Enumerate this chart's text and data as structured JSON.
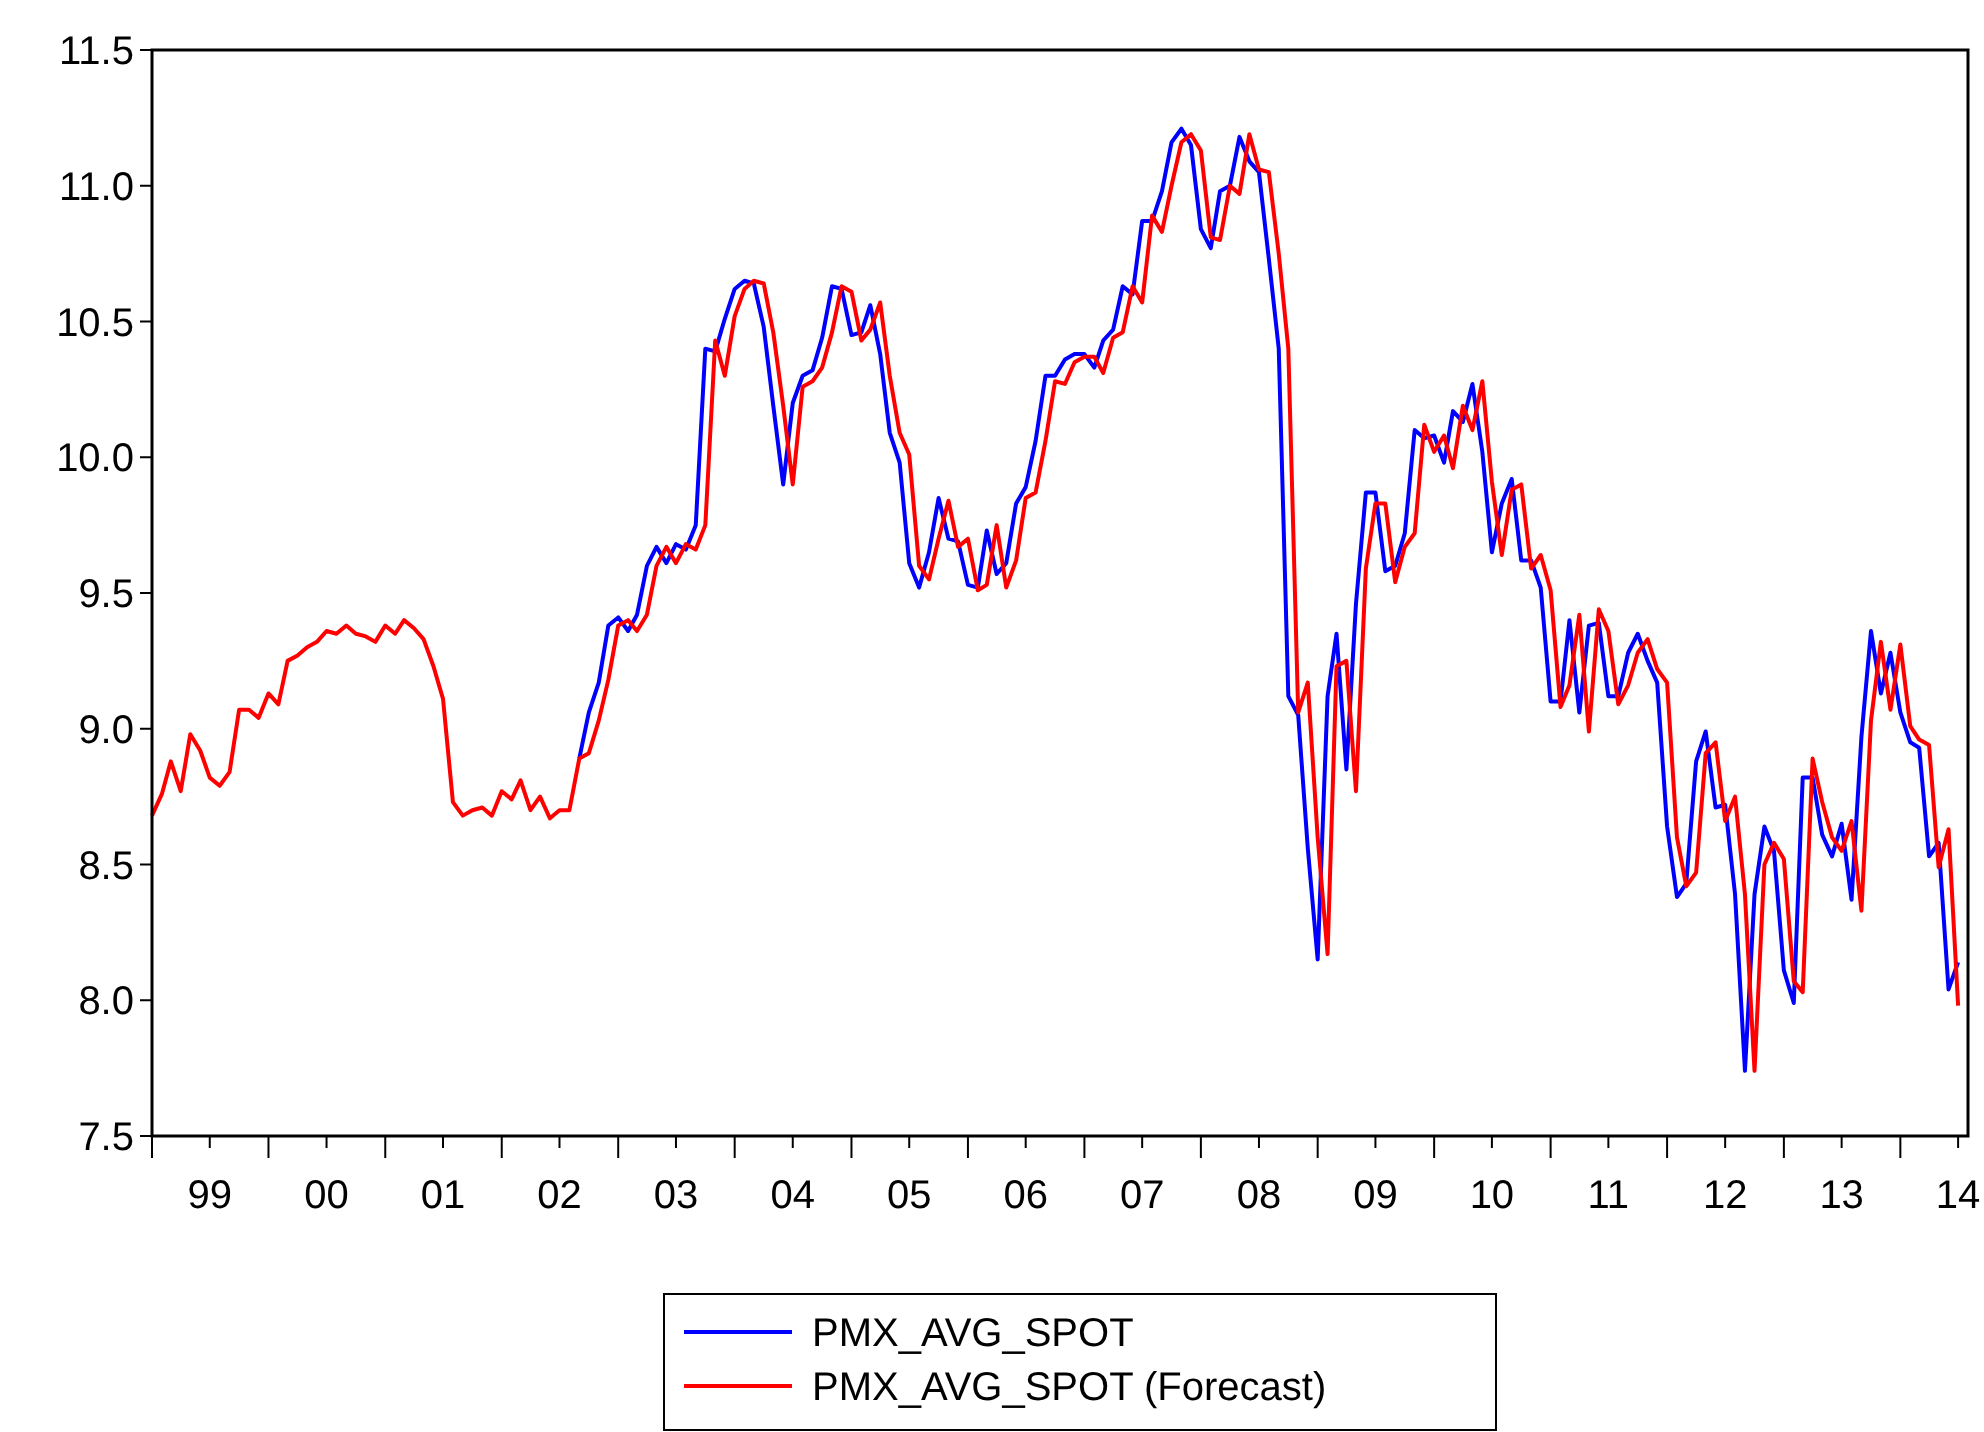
{
  "chart_data": {
    "type": "line",
    "x": [
      "1999-01",
      "1999-02",
      "1999-03",
      "1999-04",
      "1999-05",
      "1999-06",
      "1999-07",
      "1999-08",
      "1999-09",
      "1999-10",
      "1999-11",
      "1999-12",
      "2000-01",
      "2000-02",
      "2000-03",
      "2000-04",
      "2000-05",
      "2000-06",
      "2000-07",
      "2000-08",
      "2000-09",
      "2000-10",
      "2000-11",
      "2000-12",
      "2001-01",
      "2001-02",
      "2001-03",
      "2001-04",
      "2001-05",
      "2001-06",
      "2001-07",
      "2001-08",
      "2001-09",
      "2001-10",
      "2001-11",
      "2001-12",
      "2002-01",
      "2002-02",
      "2002-03",
      "2002-04",
      "2002-05",
      "2002-06",
      "2002-07",
      "2002-08",
      "2002-09",
      "2002-10",
      "2002-11",
      "2002-12",
      "2003-01",
      "2003-02",
      "2003-03",
      "2003-04",
      "2003-05",
      "2003-06",
      "2003-07",
      "2003-08",
      "2003-09",
      "2003-10",
      "2003-11",
      "2003-12",
      "2004-01",
      "2004-02",
      "2004-03",
      "2004-04",
      "2004-05",
      "2004-06",
      "2004-07",
      "2004-08",
      "2004-09",
      "2004-10",
      "2004-11",
      "2004-12",
      "2005-01",
      "2005-02",
      "2005-03",
      "2005-04",
      "2005-05",
      "2005-06",
      "2005-07",
      "2005-08",
      "2005-09",
      "2005-10",
      "2005-11",
      "2005-12",
      "2006-01",
      "2006-02",
      "2006-03",
      "2006-04",
      "2006-05",
      "2006-06",
      "2006-07",
      "2006-08",
      "2006-09",
      "2006-10",
      "2006-11",
      "2006-12",
      "2007-01",
      "2007-02",
      "2007-03",
      "2007-04",
      "2007-05",
      "2007-06",
      "2007-07",
      "2007-08",
      "2007-09",
      "2007-10",
      "2007-11",
      "2007-12",
      "2008-01",
      "2008-02",
      "2008-03",
      "2008-04",
      "2008-05",
      "2008-06",
      "2008-07",
      "2008-08",
      "2008-09",
      "2008-10",
      "2008-11",
      "2008-12",
      "2009-01",
      "2009-02",
      "2009-03",
      "2009-04",
      "2009-05",
      "2009-06",
      "2009-07",
      "2009-08",
      "2009-09",
      "2009-10",
      "2009-11",
      "2009-12",
      "2010-01",
      "2010-02",
      "2010-03",
      "2010-04",
      "2010-05",
      "2010-06",
      "2010-07",
      "2010-08",
      "2010-09",
      "2010-10",
      "2010-11",
      "2010-12",
      "2011-01",
      "2011-02",
      "2011-03",
      "2011-04",
      "2011-05",
      "2011-06",
      "2011-07",
      "2011-08",
      "2011-09",
      "2011-10",
      "2011-11",
      "2011-12",
      "2012-01",
      "2012-02",
      "2012-03",
      "2012-04",
      "2012-05",
      "2012-06",
      "2012-07",
      "2012-08",
      "2012-09",
      "2012-10",
      "2012-11",
      "2012-12",
      "2013-01",
      "2013-02",
      "2013-03",
      "2013-04",
      "2013-05",
      "2013-06",
      "2013-07",
      "2013-08",
      "2013-09",
      "2013-10",
      "2013-11",
      "2013-12",
      "2014-01",
      "2014-02",
      "2014-03",
      "2014-04",
      "2014-05",
      "2014-06",
      "2014-07"
    ],
    "series": [
      {
        "name": "PMX_AVG_SPOT",
        "color": "#0000ff",
        "values": [
          null,
          null,
          null,
          null,
          null,
          null,
          null,
          null,
          null,
          null,
          null,
          null,
          null,
          null,
          null,
          null,
          null,
          null,
          null,
          null,
          null,
          null,
          null,
          null,
          null,
          null,
          null,
          null,
          null,
          null,
          null,
          null,
          null,
          null,
          null,
          null,
          null,
          null,
          null,
          null,
          null,
          null,
          null,
          null,
          8.89,
          9.06,
          9.17,
          9.38,
          9.41,
          9.36,
          9.42,
          9.6,
          9.67,
          9.61,
          9.68,
          9.66,
          9.75,
          10.4,
          10.39,
          10.51,
          10.62,
          10.65,
          10.64,
          10.48,
          10.19,
          9.9,
          10.2,
          10.3,
          10.32,
          10.44,
          10.63,
          10.62,
          10.45,
          10.46,
          10.56,
          10.38,
          10.09,
          9.98,
          9.61,
          9.52,
          9.65,
          9.85,
          9.7,
          9.69,
          9.53,
          9.52,
          9.73,
          9.57,
          9.61,
          9.83,
          9.89,
          10.06,
          10.3,
          10.3,
          10.36,
          10.38,
          10.38,
          10.33,
          10.43,
          10.47,
          10.63,
          10.6,
          10.87,
          10.87,
          10.98,
          11.16,
          11.21,
          11.15,
          10.84,
          10.77,
          10.98,
          11.0,
          11.18,
          11.09,
          11.05,
          10.73,
          10.4,
          9.12,
          9.05,
          8.56,
          8.15,
          9.12,
          9.35,
          8.85,
          9.46,
          9.87,
          9.87,
          9.58,
          9.6,
          9.72,
          10.1,
          10.07,
          10.08,
          9.98,
          10.17,
          10.13,
          10.27,
          10.02,
          9.65,
          9.83,
          9.92,
          9.62,
          9.62,
          9.52,
          9.1,
          9.1,
          9.4,
          9.06,
          9.38,
          9.39,
          9.12,
          9.12,
          9.28,
          9.35,
          9.25,
          9.17,
          8.64,
          8.38,
          8.43,
          8.88,
          8.99,
          8.71,
          8.72,
          8.39,
          7.74,
          8.39,
          8.64,
          8.55,
          8.11,
          7.99,
          8.82,
          8.82,
          8.61,
          8.53,
          8.65,
          8.37,
          8.97,
          9.36,
          9.13,
          9.28,
          9.06,
          8.95,
          8.93,
          8.53,
          8.58,
          8.04,
          8.14
        ]
      },
      {
        "name": "PMX_AVG_SPOT (Forecast)",
        "color": "#ff0000",
        "values": [
          8.68,
          8.76,
          8.88,
          8.77,
          8.98,
          8.92,
          8.82,
          8.79,
          8.84,
          9.07,
          9.07,
          9.04,
          9.13,
          9.09,
          9.25,
          9.27,
          9.3,
          9.32,
          9.36,
          9.35,
          9.38,
          9.35,
          9.34,
          9.32,
          9.38,
          9.35,
          9.4,
          9.37,
          9.33,
          9.23,
          9.11,
          8.73,
          8.68,
          8.7,
          8.71,
          8.68,
          8.77,
          8.74,
          8.81,
          8.7,
          8.75,
          8.67,
          8.7,
          8.7,
          8.89,
          8.91,
          9.03,
          9.18,
          9.38,
          9.4,
          9.36,
          9.42,
          9.6,
          9.67,
          9.61,
          9.68,
          9.66,
          9.75,
          10.43,
          10.3,
          10.52,
          10.62,
          10.65,
          10.64,
          10.46,
          10.19,
          9.9,
          10.26,
          10.28,
          10.33,
          10.46,
          10.63,
          10.61,
          10.43,
          10.47,
          10.57,
          10.3,
          10.09,
          10.01,
          9.6,
          9.55,
          9.7,
          9.84,
          9.67,
          9.7,
          9.51,
          9.53,
          9.75,
          9.52,
          9.62,
          9.85,
          9.87,
          10.06,
          10.28,
          10.27,
          10.35,
          10.37,
          10.37,
          10.31,
          10.44,
          10.46,
          10.63,
          10.57,
          10.89,
          10.83,
          11.0,
          11.16,
          11.19,
          11.13,
          10.81,
          10.8,
          11.0,
          10.97,
          11.19,
          11.06,
          11.05,
          10.75,
          10.4,
          9.06,
          9.17,
          8.6,
          8.17,
          9.23,
          9.25,
          8.77,
          9.59,
          9.83,
          9.83,
          9.54,
          9.67,
          9.72,
          10.12,
          10.02,
          10.08,
          9.96,
          10.19,
          10.1,
          10.28,
          9.91,
          9.64,
          9.88,
          9.9,
          9.59,
          9.64,
          9.51,
          9.08,
          9.16,
          9.42,
          8.99,
          9.44,
          9.36,
          9.09,
          9.16,
          9.28,
          9.33,
          9.22,
          9.17,
          8.6,
          8.42,
          8.47,
          8.91,
          8.95,
          8.66,
          8.75,
          8.39,
          7.74,
          8.5,
          8.58,
          8.52,
          8.07,
          8.03,
          8.89,
          8.73,
          8.6,
          8.55,
          8.66,
          8.33,
          9.03,
          9.32,
          9.07,
          9.31,
          9.01,
          8.96,
          8.94,
          8.49,
          8.63,
          7.98
        ]
      }
    ],
    "xlim": [
      "1999-01",
      "2014-08"
    ],
    "xticks": [
      {
        "value": "1999-01",
        "label": null
      },
      {
        "value": "1999-07",
        "label": "99"
      },
      {
        "value": "2000-01",
        "label": null
      },
      {
        "value": "2000-07",
        "label": "00"
      },
      {
        "value": "2001-01",
        "label": null
      },
      {
        "value": "2001-07",
        "label": "01"
      },
      {
        "value": "2002-01",
        "label": null
      },
      {
        "value": "2002-07",
        "label": "02"
      },
      {
        "value": "2003-01",
        "label": null
      },
      {
        "value": "2003-07",
        "label": "03"
      },
      {
        "value": "2004-01",
        "label": null
      },
      {
        "value": "2004-07",
        "label": "04"
      },
      {
        "value": "2005-01",
        "label": null
      },
      {
        "value": "2005-07",
        "label": "05"
      },
      {
        "value": "2006-01",
        "label": null
      },
      {
        "value": "2006-07",
        "label": "06"
      },
      {
        "value": "2007-01",
        "label": null
      },
      {
        "value": "2007-07",
        "label": "07"
      },
      {
        "value": "2008-01",
        "label": null
      },
      {
        "value": "2008-07",
        "label": "08"
      },
      {
        "value": "2009-01",
        "label": null
      },
      {
        "value": "2009-07",
        "label": "09"
      },
      {
        "value": "2010-01",
        "label": null
      },
      {
        "value": "2010-07",
        "label": "10"
      },
      {
        "value": "2011-01",
        "label": null
      },
      {
        "value": "2011-07",
        "label": "11"
      },
      {
        "value": "2012-01",
        "label": null
      },
      {
        "value": "2012-07",
        "label": "12"
      },
      {
        "value": "2013-01",
        "label": null
      },
      {
        "value": "2013-07",
        "label": "13"
      },
      {
        "value": "2014-01",
        "label": null
      },
      {
        "value": "2014-07",
        "label": "14"
      }
    ],
    "ylim": [
      7.5,
      11.5
    ],
    "yticks": [
      7.5,
      {
        "value": 8,
        "label": "8.0"
      },
      8.5,
      {
        "value": 9,
        "label": "9.0"
      },
      9.5,
      {
        "value": 10,
        "label": "10.0"
      },
      10.5,
      {
        "value": 11,
        "label": "11.0"
      },
      11.5
    ],
    "grid": false,
    "legend": "bottom",
    "line_style": "solid"
  }
}
